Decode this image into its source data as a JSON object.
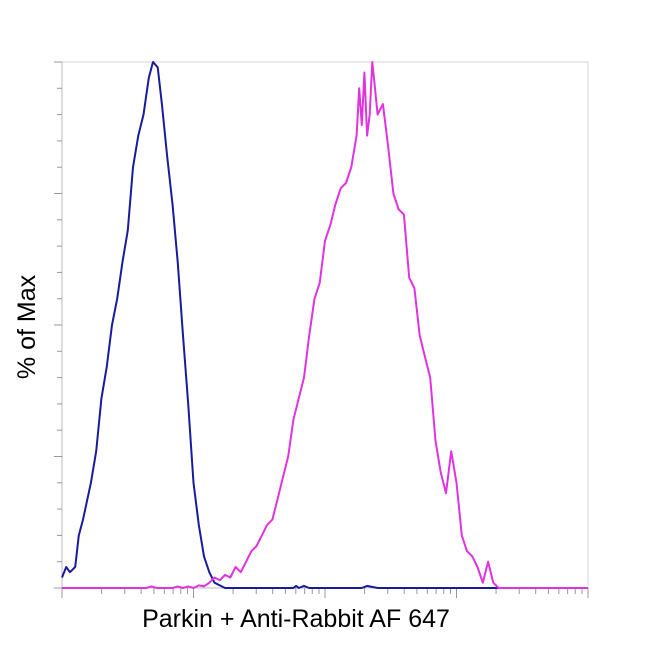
{
  "chart_data": {
    "type": "area",
    "title": "",
    "xlabel": "Parkin + Anti-Rabbit AF 647",
    "ylabel": "% of Max",
    "x_scale": "log",
    "xlim": [
      0,
      100
    ],
    "ylim": [
      0,
      100
    ],
    "grid": false,
    "legend": "none",
    "series": [
      {
        "color": "#1a1a9c",
        "points": [
          [
            0.0,
            2
          ],
          [
            0.8,
            4
          ],
          [
            1.5,
            3
          ],
          [
            2.5,
            4
          ],
          [
            3.2,
            10
          ],
          [
            4.0,
            13
          ],
          [
            5.5,
            20
          ],
          [
            6.5,
            26
          ],
          [
            7.5,
            36
          ],
          [
            8.5,
            42
          ],
          [
            9.5,
            50
          ],
          [
            10.5,
            55
          ],
          [
            11.5,
            62
          ],
          [
            12.5,
            68
          ],
          [
            13.5,
            80
          ],
          [
            14.5,
            86
          ],
          [
            15.5,
            90
          ],
          [
            16.5,
            97
          ],
          [
            17.3,
            100
          ],
          [
            18.2,
            99
          ],
          [
            19.0,
            92
          ],
          [
            20.0,
            82
          ],
          [
            21.0,
            73
          ],
          [
            22.0,
            62
          ],
          [
            23.0,
            48
          ],
          [
            24.0,
            35
          ],
          [
            25.0,
            20
          ],
          [
            26.0,
            12
          ],
          [
            27.0,
            6
          ],
          [
            28.0,
            3
          ],
          [
            29.0,
            1
          ],
          [
            30.0,
            0.5
          ],
          [
            31.0,
            0
          ],
          [
            33.0,
            0
          ],
          [
            44.0,
            0
          ],
          [
            44.5,
            0.4
          ],
          [
            45.0,
            0
          ],
          [
            46.0,
            0.4
          ],
          [
            47.0,
            0
          ],
          [
            57.0,
            0
          ],
          [
            58.0,
            0.4
          ],
          [
            60.0,
            0
          ],
          [
            100.0,
            0
          ]
        ]
      },
      {
        "color": "#e033e0",
        "points": [
          [
            0.0,
            0
          ],
          [
            16.0,
            0
          ],
          [
            17.0,
            0.3
          ],
          [
            18.0,
            0
          ],
          [
            21.0,
            0
          ],
          [
            22.0,
            0.3
          ],
          [
            23.0,
            0
          ],
          [
            24.0,
            0.3
          ],
          [
            25.0,
            0
          ],
          [
            26.0,
            0.5
          ],
          [
            27.0,
            0.3
          ],
          [
            28.0,
            1
          ],
          [
            29.0,
            2
          ],
          [
            30.0,
            1.5
          ],
          [
            31.0,
            2.5
          ],
          [
            32.0,
            2
          ],
          [
            33.0,
            4
          ],
          [
            34.0,
            3
          ],
          [
            35.0,
            5
          ],
          [
            36.0,
            7
          ],
          [
            37.0,
            8
          ],
          [
            38.0,
            10
          ],
          [
            39.0,
            12
          ],
          [
            40.0,
            13
          ],
          [
            41.0,
            17
          ],
          [
            42.0,
            21
          ],
          [
            43.0,
            25
          ],
          [
            44.0,
            32
          ],
          [
            45.0,
            36
          ],
          [
            46.0,
            40
          ],
          [
            47.0,
            48
          ],
          [
            48.0,
            55
          ],
          [
            49.0,
            58
          ],
          [
            50.0,
            66
          ],
          [
            51.0,
            69
          ],
          [
            52.0,
            73
          ],
          [
            53.0,
            76
          ],
          [
            54.0,
            77
          ],
          [
            55.0,
            80
          ],
          [
            56.0,
            86
          ],
          [
            56.5,
            95
          ],
          [
            57.0,
            88
          ],
          [
            57.5,
            98
          ],
          [
            58.0,
            86
          ],
          [
            58.5,
            90
          ],
          [
            59.0,
            100
          ],
          [
            59.5,
            95
          ],
          [
            60.0,
            90
          ],
          [
            61.0,
            92
          ],
          [
            62.0,
            84
          ],
          [
            63.0,
            75
          ],
          [
            64.0,
            72
          ],
          [
            65.0,
            71
          ],
          [
            66.0,
            59
          ],
          [
            67.0,
            57
          ],
          [
            68.0,
            48
          ],
          [
            69.0,
            44
          ],
          [
            70.0,
            40
          ],
          [
            71.0,
            28
          ],
          [
            72.0,
            22
          ],
          [
            73.0,
            18
          ],
          [
            74.0,
            26
          ],
          [
            75.0,
            20
          ],
          [
            76.0,
            10
          ],
          [
            77.0,
            7
          ],
          [
            78.0,
            6
          ],
          [
            79.0,
            4
          ],
          [
            80.0,
            1
          ],
          [
            81.0,
            5
          ],
          [
            82.0,
            1
          ],
          [
            83.0,
            0
          ],
          [
            100.0,
            0
          ]
        ]
      }
    ]
  }
}
